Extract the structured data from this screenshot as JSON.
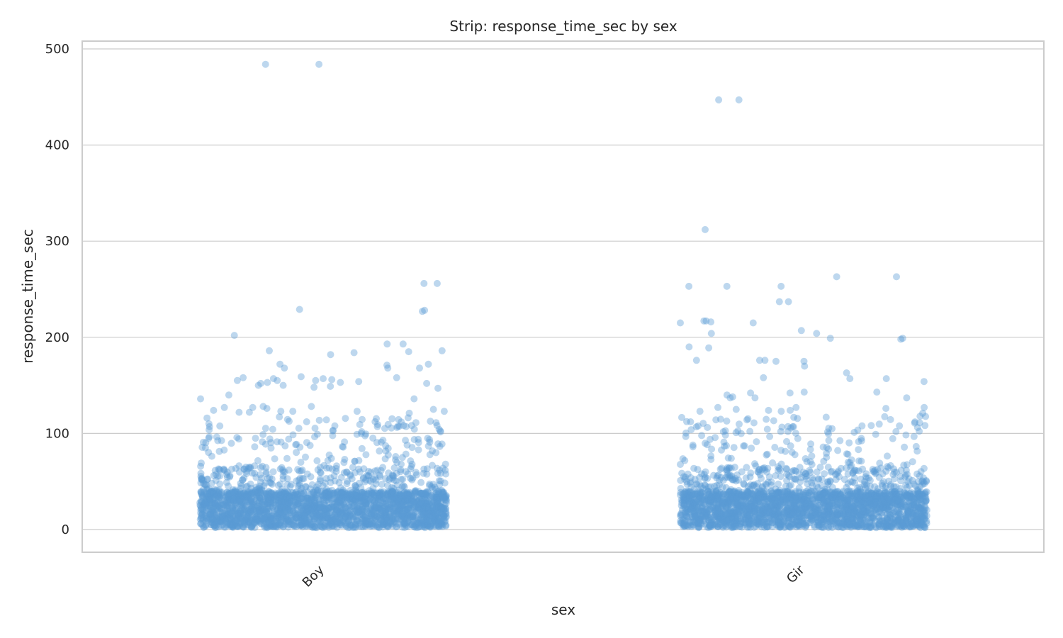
{
  "chart_data": {
    "type": "scatter",
    "subtype": "strip",
    "title": "Strip: response_time_sec by sex",
    "xlabel": "sex",
    "ylabel": "response_time_sec",
    "categories": [
      "Boy",
      "Gir"
    ],
    "ylim": [
      -25,
      510
    ],
    "yticks": [
      0,
      100,
      200,
      300,
      400,
      500
    ],
    "grid": true,
    "point_color": "#5b9bd5",
    "point_opacity": 0.4,
    "notable_points": [
      {
        "category": "Boy",
        "values": [
          484,
          484,
          256,
          256,
          229,
          228,
          227,
          202,
          193,
          193,
          186,
          186,
          185,
          184,
          182,
          172,
          172,
          171,
          168,
          168,
          168,
          159,
          158,
          158,
          157,
          157,
          156,
          155,
          155,
          155,
          154,
          153,
          153,
          152,
          152,
          150,
          150,
          149,
          148,
          147,
          140,
          136,
          136,
          128,
          128,
          127,
          127,
          126,
          125,
          124,
          123,
          123,
          123,
          123,
          122,
          122,
          121
        ]
      },
      {
        "category": "Gir",
        "values": [
          447,
          447,
          312,
          263,
          263,
          253,
          253,
          253,
          237,
          237,
          217,
          217,
          216,
          215,
          215,
          207,
          204,
          204,
          199,
          199,
          198,
          190,
          189,
          176,
          176,
          176,
          175,
          175,
          170,
          163,
          158,
          157,
          157,
          154,
          143,
          143,
          142,
          142,
          140,
          138,
          137,
          137,
          137,
          127,
          127,
          127,
          126,
          125,
          124,
          124,
          123,
          123,
          121
        ]
      }
    ]
  }
}
